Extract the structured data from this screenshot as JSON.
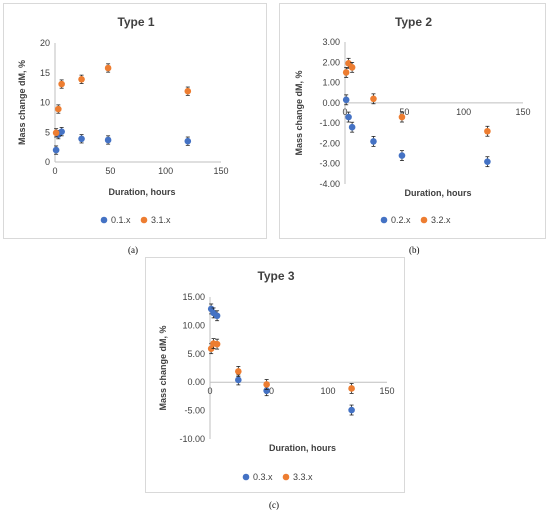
{
  "captions": [
    "(a)",
    "(b)",
    "(c)"
  ],
  "chart_data": [
    {
      "type": "scatter",
      "title": "Type 1",
      "xlabel": "Duration, hours",
      "ylabel": "Mass change dM, %",
      "xlim": [
        0,
        150
      ],
      "ylim": [
        0,
        20
      ],
      "x_ticks": [
        "0",
        "50",
        "100",
        "150"
      ],
      "y_ticks": [
        "0",
        "5",
        "10",
        "15",
        "20"
      ],
      "grid": false,
      "legend_position": "bottom",
      "series": [
        {
          "name": "0.1.x",
          "color": "#4472c4",
          "points": [
            [
              1,
              2.0
            ],
            [
              3,
              4.6
            ],
            [
              6,
              5.1
            ],
            [
              24,
              3.9
            ],
            [
              48,
              3.7
            ],
            [
              120,
              3.5
            ]
          ]
        },
        {
          "name": "3.1.x",
          "color": "#ed7d31",
          "points": [
            [
              1,
              4.9
            ],
            [
              3,
              8.9
            ],
            [
              6,
              13.1
            ],
            [
              24,
              13.9
            ],
            [
              48,
              15.8
            ],
            [
              120,
              11.9
            ]
          ]
        }
      ]
    },
    {
      "type": "scatter",
      "title": "Type 2",
      "xlabel": "Duration, hours",
      "ylabel": "Mass change dM, %",
      "xlim": [
        0,
        150
      ],
      "ylim": [
        -4,
        3
      ],
      "x_ticks": [
        "0",
        "50",
        "100",
        "150"
      ],
      "y_ticks": [
        "3.00",
        "2.00",
        "1.00",
        "0.00",
        "-1.00",
        "-2.00",
        "-3.00",
        "-4.00"
      ],
      "grid": false,
      "legend_position": "bottom",
      "series": [
        {
          "name": "0.2.x",
          "color": "#4472c4",
          "points": [
            [
              1,
              0.15
            ],
            [
              3,
              -0.7
            ],
            [
              6,
              -1.2
            ],
            [
              24,
              -1.9
            ],
            [
              48,
              -2.6
            ],
            [
              120,
              -2.9
            ]
          ]
        },
        {
          "name": "3.2.x",
          "color": "#ed7d31",
          "points": [
            [
              1,
              1.5
            ],
            [
              3,
              1.95
            ],
            [
              6,
              1.75
            ],
            [
              24,
              0.2
            ],
            [
              48,
              -0.7
            ],
            [
              120,
              -1.4
            ]
          ]
        }
      ]
    },
    {
      "type": "scatter",
      "title": "Type 3",
      "xlabel": "Duration, hours",
      "ylabel": "Mass change dM, %",
      "xlim": [
        0,
        150
      ],
      "ylim": [
        -10,
        15
      ],
      "x_ticks": [
        "0",
        "50",
        "100",
        "150"
      ],
      "y_ticks": [
        "15.00",
        "10.00",
        "5.00",
        "0.00",
        "-5.00",
        "-10.00"
      ],
      "grid": false,
      "legend_position": "bottom",
      "series": [
        {
          "name": "0.3.x",
          "color": "#4472c4",
          "points": [
            [
              1,
              12.9
            ],
            [
              3,
              12.2
            ],
            [
              6,
              11.7
            ],
            [
              24,
              0.4
            ],
            [
              48,
              -1.5
            ],
            [
              120,
              -4.9
            ]
          ]
        },
        {
          "name": "3.3.x",
          "color": "#ed7d31",
          "points": [
            [
              1,
              5.9
            ],
            [
              3,
              6.8
            ],
            [
              6,
              6.7
            ],
            [
              24,
              1.9
            ],
            [
              48,
              -0.4
            ],
            [
              120,
              -1.1
            ]
          ]
        }
      ]
    }
  ]
}
